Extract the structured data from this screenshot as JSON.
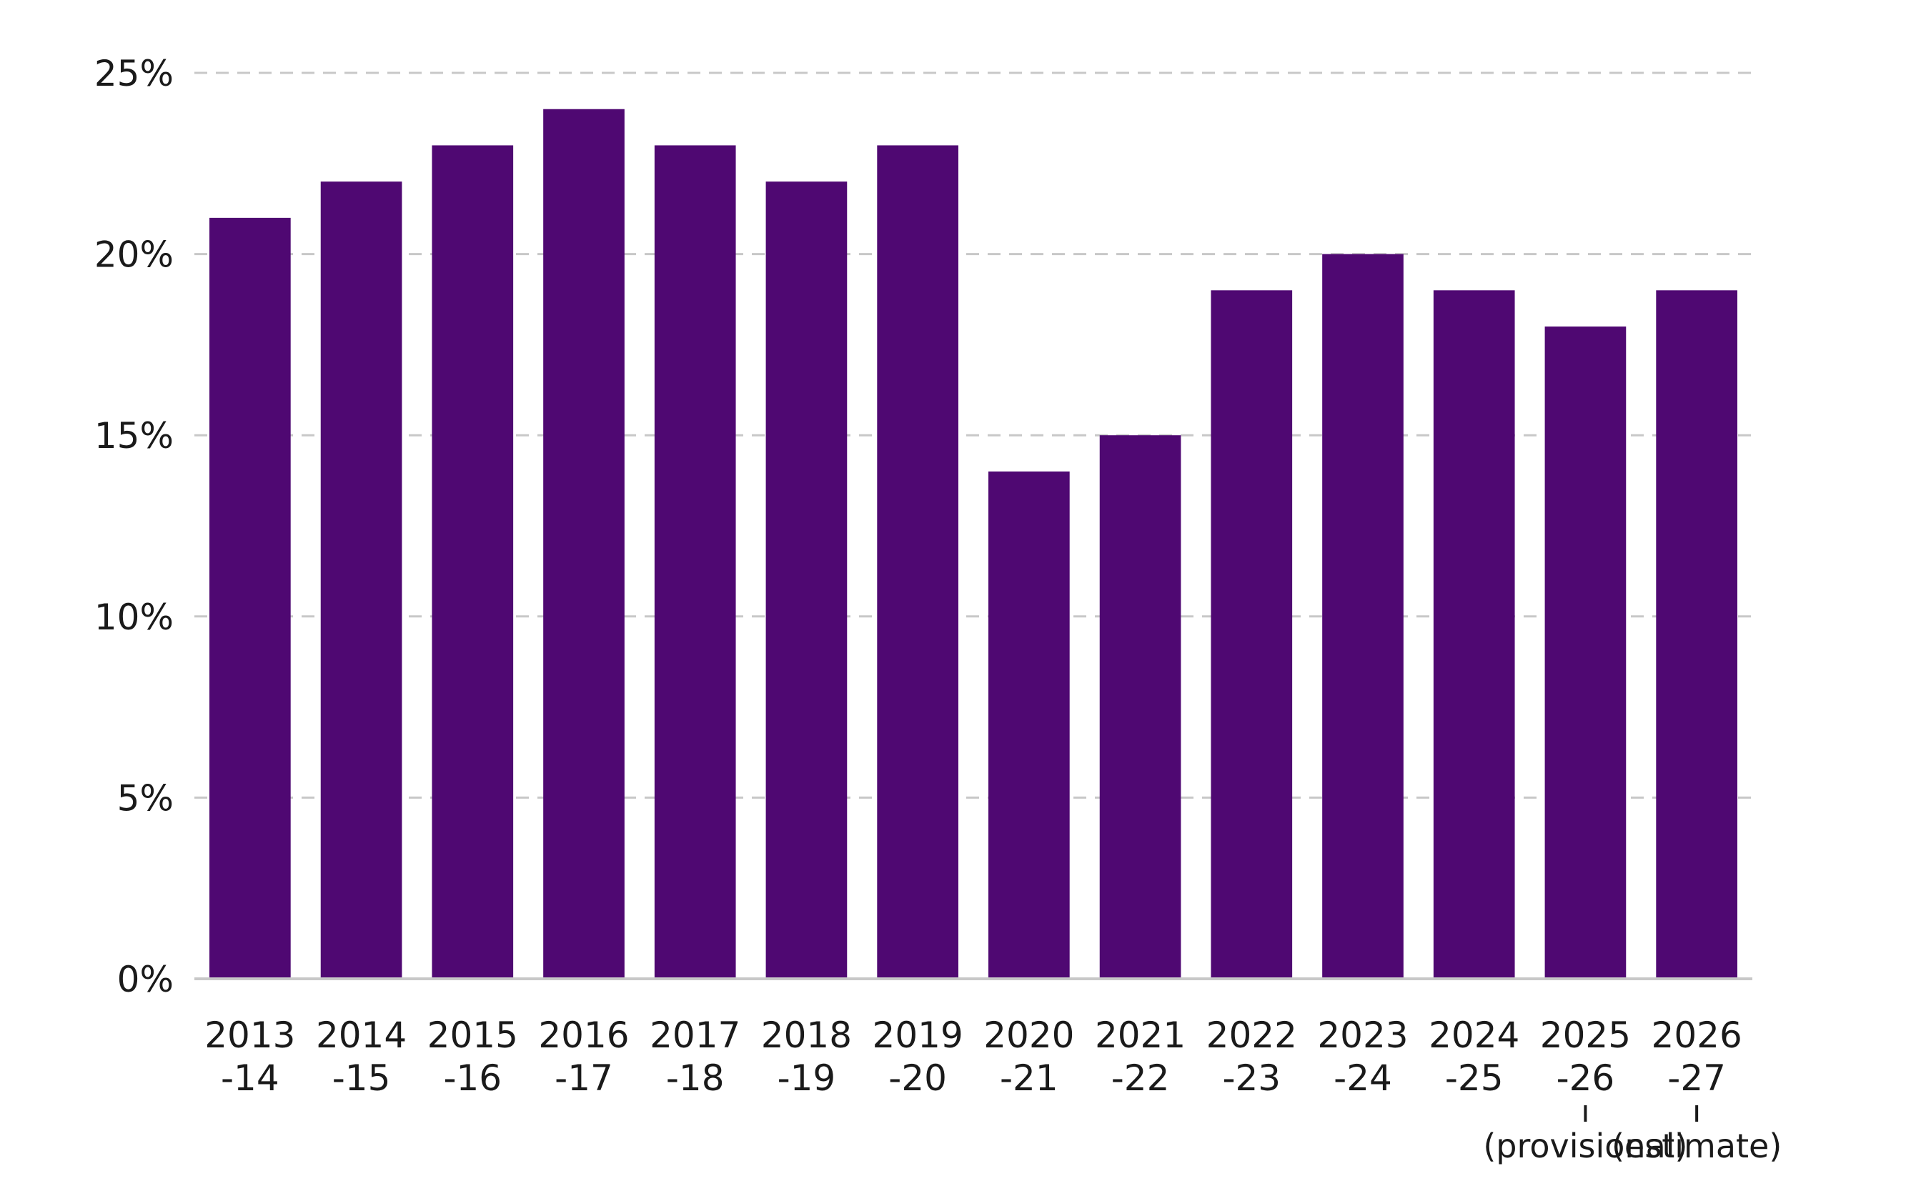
{
  "chart_data": {
    "type": "bar",
    "categories": [
      "2013-14",
      "2014-15",
      "2015-16",
      "2016-17",
      "2017-18",
      "2018-19",
      "2019-20",
      "2020-21",
      "2021-22",
      "2022-23",
      "2023-24",
      "2024-25",
      "2025-26",
      "2026-27"
    ],
    "category_lines": [
      [
        "2013",
        "-14"
      ],
      [
        "2014",
        "-15"
      ],
      [
        "2015",
        "-16"
      ],
      [
        "2016",
        "-17"
      ],
      [
        "2017",
        "-18"
      ],
      [
        "2018",
        "-19"
      ],
      [
        "2019",
        "-20"
      ],
      [
        "2020",
        "-21"
      ],
      [
        "2021",
        "-22"
      ],
      [
        "2022",
        "-23"
      ],
      [
        "2023",
        "-24"
      ],
      [
        "2024",
        "-25"
      ],
      [
        "2025",
        "-26"
      ],
      [
        "2026",
        "-27"
      ]
    ],
    "values": [
      21,
      22,
      23,
      24,
      23,
      22,
      23,
      14,
      15,
      19,
      20,
      19,
      18,
      19
    ],
    "unit": "%",
    "ylim": [
      0,
      25
    ],
    "yticks": [
      0,
      5,
      10,
      15,
      20,
      25
    ],
    "ytick_labels": [
      "0%",
      "5%",
      "10%",
      "15%",
      "20%",
      "25%"
    ],
    "grid": true,
    "bar_color": "#4f0872",
    "annotations": [
      {
        "category": "2025-26",
        "text": "(provisional)"
      },
      {
        "category": "2026-27",
        "text": "(estimate)"
      }
    ],
    "title": "",
    "xlabel": "",
    "ylabel": ""
  }
}
